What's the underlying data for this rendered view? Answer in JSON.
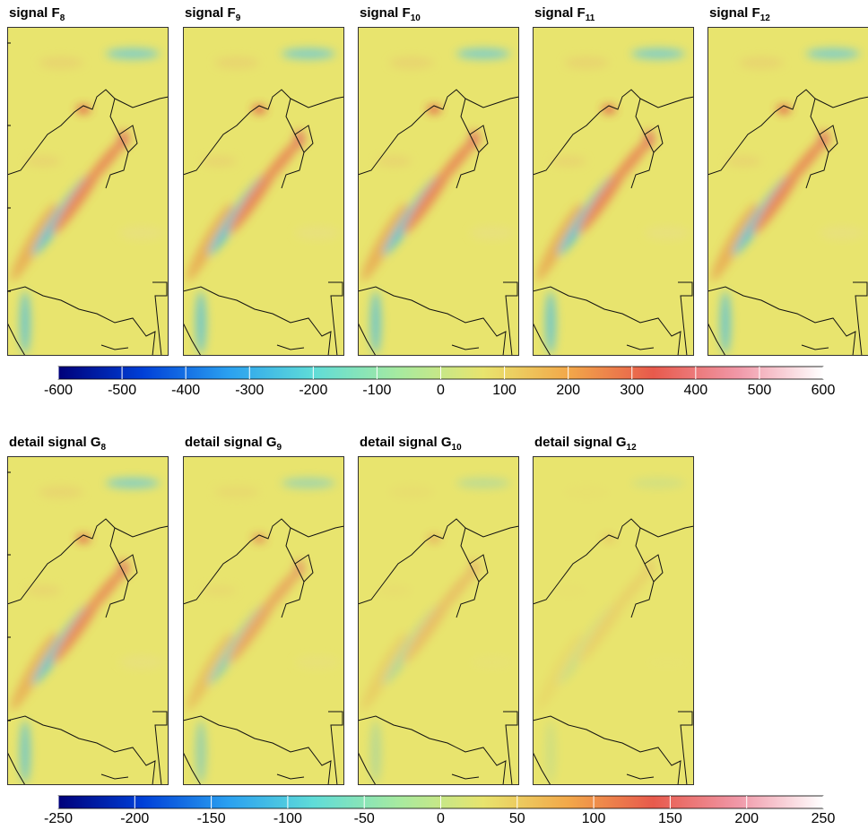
{
  "rows": [
    {
      "panels": [
        {
          "title": "signal F",
          "sub": "8"
        },
        {
          "title": "signal F",
          "sub": "9"
        },
        {
          "title": "signal F",
          "sub": "10"
        },
        {
          "title": "signal F",
          "sub": "11"
        },
        {
          "title": "signal F",
          "sub": "12"
        }
      ],
      "colorbar": {
        "lim": [
          -600,
          600
        ],
        "ticks": [
          -600,
          -500,
          -400,
          -300,
          -200,
          -100,
          0,
          100,
          200,
          300,
          400,
          500,
          600
        ]
      }
    },
    {
      "panels": [
        {
          "title": "detail signal G",
          "sub": "8"
        },
        {
          "title": "detail signal G",
          "sub": "9"
        },
        {
          "title": "detail signal G",
          "sub": "10"
        },
        {
          "title": "detail signal G",
          "sub": "12"
        }
      ],
      "colorbar": {
        "lim": [
          -250,
          250
        ],
        "ticks": [
          -250,
          -200,
          -150,
          -100,
          -50,
          0,
          50,
          100,
          150,
          200,
          250
        ]
      }
    }
  ],
  "colormap": [
    "#00007a",
    "#0040d8",
    "#2aa0f0",
    "#5fdcd8",
    "#a6eaa0",
    "#e8e46e",
    "#f2a84a",
    "#e85a4c",
    "#f098a8",
    "#ffffff"
  ]
}
